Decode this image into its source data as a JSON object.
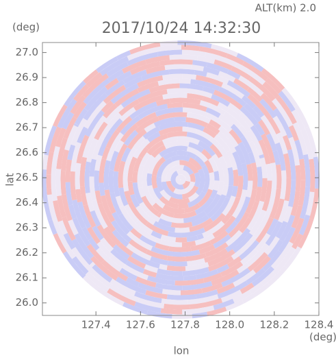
{
  "chart_data": {
    "type": "radar-image",
    "title": "2017/10/24 14:32:30",
    "altitude_label": "ALT(km) 2.0",
    "xlabel": "lon",
    "ylabel": "lat",
    "xunit": "(deg)",
    "yunit": "(deg)",
    "xlim": [
      127.16,
      128.4
    ],
    "ylim": [
      25.95,
      27.04
    ],
    "xticks": [
      127.4,
      127.6,
      127.8,
      {
        "value": 128,
        "label": "128.0"
      },
      128.2,
      128.4
    ],
    "yticks": [
      {
        "value": 26,
        "label": "26.0"
      },
      26.1,
      26.2,
      26.3,
      26.4,
      26.5,
      26.6,
      26.7,
      26.8,
      26.9,
      {
        "value": 27,
        "label": "27.0"
      }
    ],
    "colors": [
      "#f5b8b8",
      "#c3c6f5",
      "#ece6f4"
    ]
  }
}
